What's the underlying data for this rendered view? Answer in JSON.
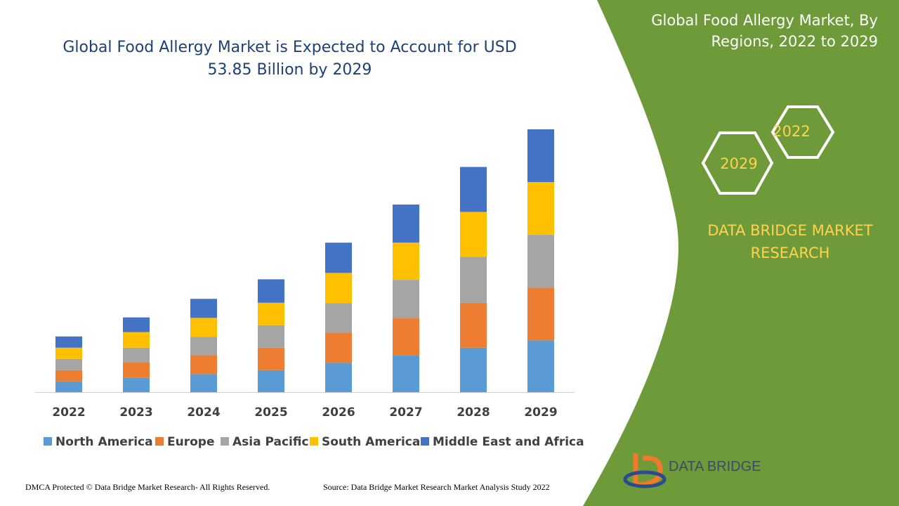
{
  "chart_data": {
    "type": "bar",
    "stacked": true,
    "title": "Global Food Allergy Market is Expected to Account for USD 53.85 Billion by 2029",
    "categories": [
      "2022",
      "2023",
      "2024",
      "2025",
      "2026",
      "2027",
      "2028",
      "2029"
    ],
    "series": [
      {
        "name": "North America",
        "color": "#5b9bd5",
        "values": [
          2.2,
          2.9,
          3.7,
          4.5,
          6.0,
          7.6,
          9.1,
          10.6
        ]
      },
      {
        "name": "Europe",
        "color": "#ed7d31",
        "values": [
          2.3,
          3.2,
          3.9,
          4.6,
          6.2,
          7.6,
          9.2,
          10.8
        ]
      },
      {
        "name": "Asia Pacific",
        "color": "#a5a5a5",
        "values": [
          2.3,
          3.0,
          3.7,
          4.6,
          6.0,
          7.8,
          9.4,
          10.8
        ]
      },
      {
        "name": "South America",
        "color": "#ffc000",
        "values": [
          2.3,
          3.2,
          3.9,
          4.6,
          6.2,
          7.6,
          9.2,
          10.8
        ]
      },
      {
        "name": "Middle East and Africa",
        "color": "#4472c4",
        "values": [
          2.3,
          3.0,
          3.9,
          4.8,
          6.2,
          7.8,
          9.2,
          10.8
        ]
      }
    ]
  },
  "panel": {
    "title": "Global Food Allergy Market, By Regions, 2022 to 2029",
    "hex_start": "2022",
    "hex_end": "2029",
    "brand": "DATA BRIDGE MARKET RESEARCH",
    "logo": "DATA BRIDGE"
  },
  "footer": {
    "copyright": "DMCA Protected © Data Bridge Market Research- All Rights Reserved.",
    "source": "Source: Data Bridge Market Research Market Analysis Study 2022"
  }
}
